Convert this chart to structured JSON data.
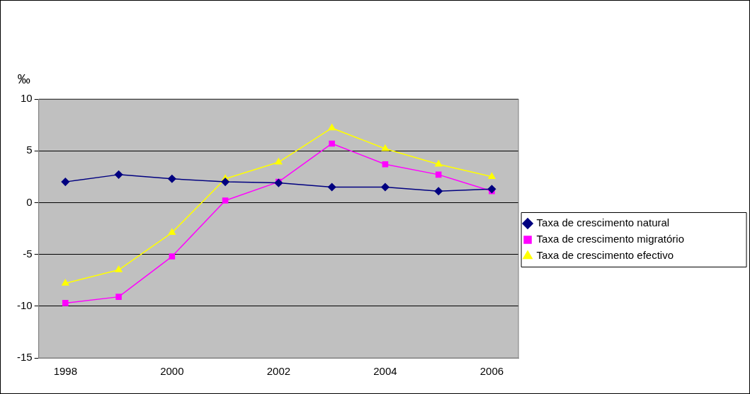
{
  "chart_data": {
    "type": "line",
    "ylabel": "‰",
    "x": [
      1998,
      1999,
      2000,
      2001,
      2002,
      2003,
      2004,
      2005,
      2006
    ],
    "xlim": [
      1997.5,
      2006.5
    ],
    "xticks": [
      1998,
      2000,
      2002,
      2004,
      2006
    ],
    "ylim": [
      -15,
      10
    ],
    "yticks": [
      -15,
      -10,
      -5,
      0,
      5,
      10
    ],
    "grid": "y",
    "legend": "right",
    "line_style": "solid",
    "series": [
      {
        "name": "Taxa de crescimento natural",
        "color": "#000080",
        "marker": "diamond",
        "values": [
          2.0,
          2.7,
          2.3,
          2.0,
          1.9,
          1.5,
          1.5,
          1.1,
          1.3
        ]
      },
      {
        "name": "Taxa de crescimento migratório",
        "color": "#ff00ff",
        "marker": "square",
        "values": [
          -9.7,
          -9.1,
          -5.2,
          0.2,
          2.0,
          5.7,
          3.7,
          2.7,
          1.1
        ]
      },
      {
        "name": "Taxa de crescimento efectivo",
        "color": "#ffff00",
        "marker": "triangle",
        "values": [
          -7.8,
          -6.5,
          -2.9,
          2.3,
          3.9,
          7.2,
          5.2,
          3.7,
          2.5
        ]
      }
    ]
  }
}
